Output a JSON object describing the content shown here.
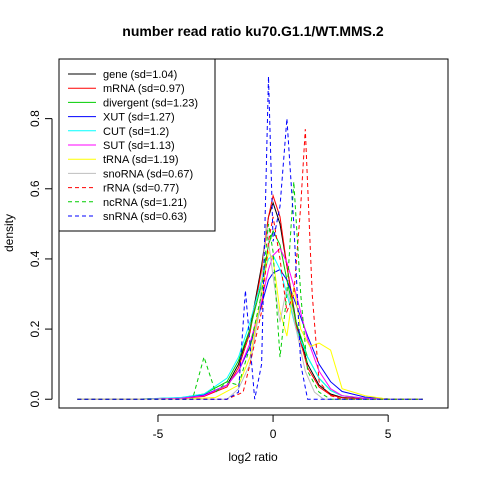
{
  "chart_data": {
    "type": "line",
    "title": "number read ratio ku70.G1.1/WT.MMS.2",
    "xlabel": "log2 ratio",
    "ylabel": "density",
    "xlim": [
      -9.3,
      7.6
    ],
    "ylim": [
      -0.025,
      0.97
    ],
    "x_ticks": [
      -5,
      0,
      5
    ],
    "x_tick_labels": [
      "-5",
      "0",
      "5"
    ],
    "y_ticks": [
      0.0,
      0.2,
      0.4,
      0.6,
      0.8
    ],
    "y_tick_labels": [
      "0.0",
      "0.2",
      "0.4",
      "0.6",
      "0.8"
    ],
    "grid": false,
    "legend_position": "top-left",
    "series": [
      {
        "name": "gene (sd=1.04)",
        "color": "#000000",
        "dash": false,
        "x": [
          -8.5,
          -6,
          -4,
          -3,
          -2,
          -1.5,
          -1,
          -0.5,
          -0.2,
          0,
          0.3,
          0.6,
          1,
          1.5,
          2,
          2.5,
          3,
          4,
          5,
          6.5
        ],
        "y": [
          0,
          0,
          0.003,
          0.01,
          0.04,
          0.1,
          0.2,
          0.38,
          0.52,
          0.56,
          0.5,
          0.38,
          0.22,
          0.1,
          0.04,
          0.015,
          0.005,
          0.002,
          0,
          0
        ]
      },
      {
        "name": "mRNA (sd=0.97)",
        "color": "#ff0000",
        "dash": false,
        "x": [
          -8.5,
          -6,
          -4,
          -3,
          -2,
          -1.5,
          -1,
          -0.5,
          -0.2,
          0,
          0.3,
          0.6,
          1,
          1.5,
          2,
          2.5,
          3,
          4,
          5,
          6.5
        ],
        "y": [
          0,
          0,
          0.002,
          0.008,
          0.035,
          0.09,
          0.19,
          0.37,
          0.52,
          0.58,
          0.52,
          0.38,
          0.21,
          0.09,
          0.035,
          0.012,
          0.004,
          0.001,
          0,
          0
        ]
      },
      {
        "name": "divergent (sd=1.23)",
        "color": "#00cd00",
        "dash": false,
        "x": [
          -8.5,
          -6,
          -4,
          -3,
          -2,
          -1.5,
          -1,
          -0.5,
          -0.2,
          0,
          0.3,
          0.6,
          1,
          1.5,
          2,
          2.5,
          3,
          4,
          5,
          6.5
        ],
        "y": [
          0,
          0,
          0.004,
          0.015,
          0.05,
          0.11,
          0.2,
          0.33,
          0.44,
          0.48,
          0.44,
          0.34,
          0.22,
          0.12,
          0.06,
          0.025,
          0.01,
          0.003,
          0,
          0
        ]
      },
      {
        "name": "XUT (sd=1.27)",
        "color": "#0000ff",
        "dash": false,
        "x": [
          -8.5,
          -6,
          -4,
          -3,
          -2,
          -1.5,
          -1,
          -0.5,
          -0.2,
          0,
          0.3,
          0.6,
          1,
          1.5,
          2,
          2.5,
          3,
          4,
          5,
          6.5
        ],
        "y": [
          0,
          0,
          0.004,
          0.012,
          0.04,
          0.08,
          0.15,
          0.27,
          0.34,
          0.36,
          0.37,
          0.34,
          0.27,
          0.18,
          0.1,
          0.05,
          0.022,
          0.006,
          0.001,
          0
        ]
      },
      {
        "name": "CUT (sd=1.2)",
        "color": "#00ffff",
        "dash": false,
        "x": [
          -8.5,
          -6,
          -4,
          -3,
          -2,
          -1.5,
          -1,
          -0.5,
          -0.2,
          0,
          0.3,
          0.6,
          1,
          1.5,
          2,
          2.5,
          3,
          4,
          5,
          6.5
        ],
        "y": [
          0,
          0,
          0.005,
          0.015,
          0.06,
          0.12,
          0.22,
          0.34,
          0.4,
          0.41,
          0.37,
          0.3,
          0.2,
          0.12,
          0.06,
          0.025,
          0.01,
          0.003,
          0,
          0
        ]
      },
      {
        "name": "SUT (sd=1.13)",
        "color": "#ff00ff",
        "dash": false,
        "x": [
          -8.5,
          -6,
          -4,
          -3,
          -2,
          -1.5,
          -1,
          -0.5,
          -0.2,
          0,
          0.3,
          0.6,
          1,
          1.5,
          2,
          2.5,
          3,
          4,
          5,
          6.5
        ],
        "y": [
          0,
          0,
          0.003,
          0.01,
          0.04,
          0.08,
          0.16,
          0.28,
          0.37,
          0.41,
          0.43,
          0.39,
          0.3,
          0.17,
          0.08,
          0.03,
          0.01,
          0.003,
          0,
          0
        ]
      },
      {
        "name": "tRNA (sd=1.19)",
        "color": "#ffff00",
        "dash": false,
        "x": [
          -8.5,
          -6,
          -4,
          -2.5,
          -1.5,
          -1,
          -0.5,
          -0.2,
          0,
          0.3,
          0.6,
          0.9,
          1.2,
          1.6,
          2,
          2.5,
          3,
          4,
          5,
          6.5
        ],
        "y": [
          0,
          0,
          0,
          0.005,
          0.04,
          0.12,
          0.3,
          0.42,
          0.4,
          0.25,
          0.18,
          0.32,
          0.2,
          0.15,
          0.16,
          0.14,
          0.03,
          0.01,
          0,
          0
        ]
      },
      {
        "name": "snoRNA (sd=0.67)",
        "color": "#bebebe",
        "dash": false,
        "x": [
          -8.5,
          -6,
          -4,
          -2,
          -1.5,
          -1,
          -0.6,
          -0.3,
          0,
          0.3,
          0.6,
          1,
          1.4,
          1.8,
          2.2,
          3,
          4,
          6.5
        ],
        "y": [
          0,
          0,
          0,
          0,
          0.03,
          0.1,
          0.25,
          0.5,
          0.35,
          0.22,
          0.32,
          0.2,
          0.08,
          0.02,
          0,
          0,
          0,
          0
        ]
      },
      {
        "name": "rRNA (sd=0.77)",
        "color": "#ff0000",
        "dash": true,
        "x": [
          -8.5,
          -6,
          -4,
          -2,
          -1.3,
          -1,
          -0.5,
          -0.2,
          0,
          0.3,
          0.6,
          0.9,
          1.2,
          1.4,
          1.7,
          2,
          2.5,
          3,
          4,
          6.5
        ],
        "y": [
          0,
          0,
          0,
          0,
          0.02,
          0.1,
          0.25,
          0.45,
          0.52,
          0.4,
          0.25,
          0.3,
          0.55,
          0.77,
          0.3,
          0.05,
          0.01,
          0,
          0,
          0
        ]
      },
      {
        "name": "ncRNA (sd=1.21)",
        "color": "#00cd00",
        "dash": true,
        "x": [
          -8.5,
          -6,
          -4,
          -3.5,
          -3,
          -2.5,
          -2,
          -1.5,
          -1,
          -0.5,
          -0.2,
          0,
          0.3,
          0.6,
          0.9,
          1.2,
          1.5,
          2,
          2.5,
          3,
          4,
          6.5
        ],
        "y": [
          0,
          0,
          0,
          0,
          0.12,
          0.02,
          0.05,
          0.04,
          0.15,
          0.3,
          0.5,
          0.42,
          0.12,
          0.3,
          0.62,
          0.3,
          0.08,
          0.02,
          0,
          0,
          0,
          0
        ]
      },
      {
        "name": "snRNA (sd=0.63)",
        "color": "#0000ff",
        "dash": true,
        "x": [
          -8.5,
          -6,
          -4,
          -2,
          -1.5,
          -1.2,
          -0.8,
          -0.5,
          -0.2,
          0,
          0.3,
          0.6,
          0.9,
          1.2,
          1.5,
          2,
          3,
          6.5
        ],
        "y": [
          0,
          0,
          0,
          0,
          0.02,
          0.31,
          0,
          0.1,
          0.92,
          0.45,
          0.55,
          0.8,
          0.5,
          0.1,
          0,
          0,
          0,
          0
        ]
      }
    ]
  }
}
